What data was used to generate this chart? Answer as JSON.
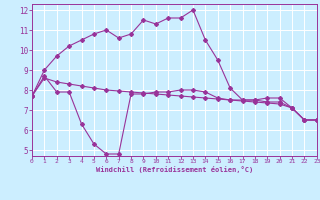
{
  "xlabel": "Windchill (Refroidissement éolien,°C)",
  "xlim": [
    0,
    23
  ],
  "ylim": [
    4.7,
    12.3
  ],
  "yticks": [
    5,
    6,
    7,
    8,
    9,
    10,
    11,
    12
  ],
  "xticks": [
    0,
    1,
    2,
    3,
    4,
    5,
    6,
    7,
    8,
    9,
    10,
    11,
    12,
    13,
    14,
    15,
    16,
    17,
    18,
    19,
    20,
    21,
    22,
    23
  ],
  "bg_color": "#cceeff",
  "line_color": "#993399",
  "grid_color": "#ffffff",
  "curve1_x": [
    0,
    1,
    2,
    3,
    4,
    5,
    6,
    7,
    8,
    9,
    10,
    11,
    12,
    13,
    14,
    15,
    16,
    17,
    18,
    19,
    20,
    21,
    22,
    23
  ],
  "curve1_y": [
    7.7,
    9.0,
    9.7,
    10.2,
    10.5,
    10.8,
    11.0,
    10.6,
    10.8,
    11.5,
    11.3,
    11.6,
    11.6,
    12.0,
    10.5,
    9.5,
    8.1,
    7.5,
    7.5,
    7.6,
    7.6,
    7.1,
    6.5,
    6.5
  ],
  "curve2_x": [
    0,
    1,
    2,
    3,
    4,
    5,
    6,
    7,
    8,
    9,
    10,
    11,
    12,
    13,
    14,
    15,
    16,
    17,
    18,
    19,
    20,
    21,
    22,
    23
  ],
  "curve2_y": [
    7.7,
    8.7,
    7.9,
    7.9,
    6.3,
    5.3,
    4.8,
    4.8,
    7.8,
    7.8,
    7.9,
    7.9,
    8.0,
    8.0,
    7.9,
    7.6,
    7.5,
    7.5,
    7.5,
    7.4,
    7.4,
    7.1,
    6.5,
    6.5
  ],
  "curve3_x": [
    0,
    1,
    2,
    3,
    4,
    5,
    6,
    7,
    8,
    9,
    10,
    11,
    12,
    13,
    14,
    15,
    16,
    17,
    18,
    19,
    20,
    21,
    22,
    23
  ],
  "curve3_y": [
    7.7,
    8.6,
    8.4,
    8.3,
    8.2,
    8.1,
    8.0,
    7.95,
    7.9,
    7.85,
    7.8,
    7.75,
    7.7,
    7.65,
    7.6,
    7.55,
    7.5,
    7.45,
    7.4,
    7.35,
    7.3,
    7.1,
    6.5,
    6.5
  ]
}
